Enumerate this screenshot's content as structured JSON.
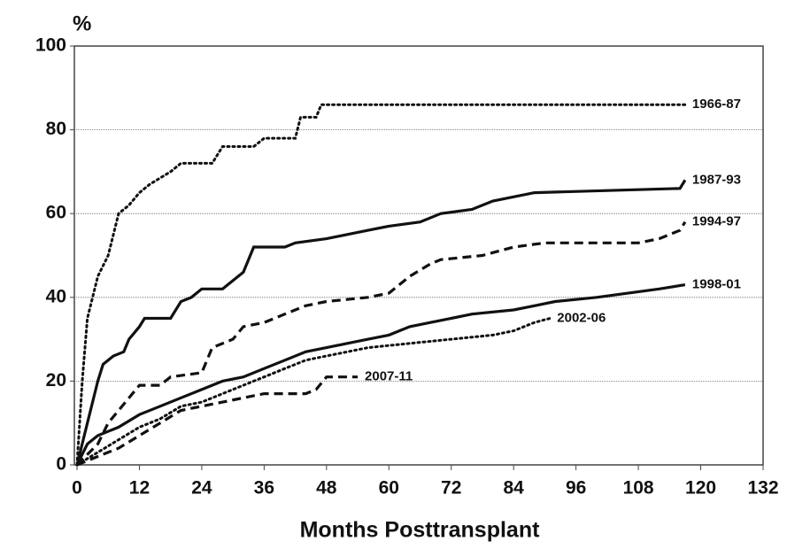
{
  "chart_data": {
    "type": "line",
    "y_axis_label": "%",
    "x_axis_label": "Months Posttransplant",
    "xlim": [
      0,
      132
    ],
    "xticks": [
      0,
      12,
      24,
      36,
      48,
      60,
      72,
      84,
      96,
      108,
      120,
      132
    ],
    "ylim": [
      0,
      100
    ],
    "yticks": [
      0,
      20,
      40,
      60,
      80,
      100
    ],
    "grid": true,
    "series": [
      {
        "name": "1966-87",
        "color": "#111111",
        "dash": "dotted",
        "x": [
          0,
          1,
          2,
          4,
          6,
          8,
          10,
          12,
          14,
          18,
          20,
          26,
          28,
          34,
          36,
          42,
          43,
          46,
          47,
          117
        ],
        "values": [
          0,
          20,
          35,
          45,
          50,
          60,
          62,
          65,
          67,
          70,
          72,
          72,
          76,
          76,
          78,
          78,
          83,
          83,
          86,
          86
        ]
      },
      {
        "name": "1987-93",
        "color": "#111111",
        "dash": "solid",
        "x": [
          0,
          2,
          4,
          5,
          7,
          9,
          10,
          12,
          13,
          18,
          20,
          22,
          24,
          28,
          30,
          32,
          34,
          40,
          42,
          48,
          52,
          56,
          60,
          66,
          70,
          76,
          80,
          84,
          88,
          116,
          117
        ],
        "values": [
          0,
          10,
          20,
          24,
          26,
          27,
          30,
          33,
          35,
          35,
          39,
          40,
          42,
          42,
          44,
          46,
          52,
          52,
          53,
          54,
          55,
          56,
          57,
          58,
          60,
          61,
          63,
          64,
          65,
          66,
          68
        ]
      },
      {
        "name": "1994-97",
        "color": "#111111",
        "dash": "dashed",
        "x": [
          0,
          4,
          6,
          8,
          12,
          16,
          18,
          24,
          26,
          30,
          32,
          36,
          40,
          44,
          48,
          56,
          60,
          64,
          68,
          70,
          78,
          84,
          90,
          108,
          112,
          116,
          117
        ],
        "values": [
          0,
          5,
          10,
          13,
          19,
          19,
          21,
          22,
          28,
          30,
          33,
          34,
          36,
          38,
          39,
          40,
          41,
          45,
          48,
          49,
          50,
          52,
          53,
          53,
          54,
          56,
          58
        ]
      },
      {
        "name": "1998-01",
        "color": "#111111",
        "dash": "solid",
        "x": [
          0,
          2,
          4,
          8,
          12,
          16,
          20,
          24,
          28,
          32,
          36,
          40,
          44,
          48,
          52,
          56,
          60,
          64,
          68,
          72,
          76,
          84,
          88,
          92,
          100,
          106,
          112,
          117
        ],
        "values": [
          0,
          5,
          7,
          9,
          12,
          14,
          16,
          18,
          20,
          21,
          23,
          25,
          27,
          28,
          29,
          30,
          31,
          33,
          34,
          35,
          36,
          37,
          38,
          39,
          40,
          41,
          42,
          43
        ]
      },
      {
        "name": "2002-06",
        "color": "#111111",
        "dash": "dotted",
        "x": [
          0,
          4,
          8,
          12,
          16,
          20,
          24,
          28,
          32,
          36,
          40,
          44,
          48,
          56,
          64,
          72,
          80,
          84,
          88,
          91
        ],
        "values": [
          0,
          3,
          6,
          9,
          11,
          14,
          15,
          17,
          19,
          21,
          23,
          25,
          26,
          28,
          29,
          30,
          31,
          32,
          34,
          35
        ]
      },
      {
        "name": "2007-11",
        "color": "#111111",
        "dash": "dashed",
        "x": [
          0,
          4,
          8,
          12,
          16,
          20,
          24,
          28,
          32,
          36,
          44,
          46,
          48,
          54
        ],
        "values": [
          0,
          2,
          4,
          7,
          10,
          13,
          14,
          15,
          16,
          17,
          17,
          18,
          21,
          21
        ]
      }
    ]
  }
}
